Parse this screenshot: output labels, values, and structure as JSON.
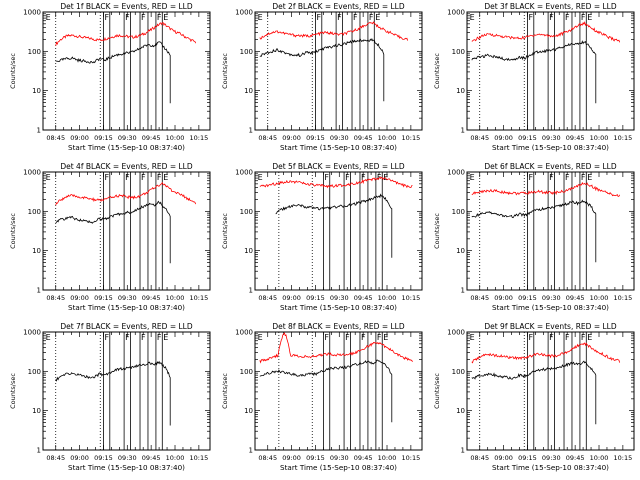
{
  "figure": {
    "ylabel": "Counts/sec",
    "xlabel": "Start Time (15-Sep-10 08:37:40)",
    "ytick_labels": [
      "1",
      "10",
      "100",
      "1000"
    ],
    "xtick_labels": [
      "08:45",
      "09:00",
      "09:15",
      "09:30",
      "09:45",
      "10:00",
      "10:15"
    ],
    "event_marker_labels": {
      "E": "E",
      "F": "F"
    },
    "colors": {
      "events": "#000000",
      "lld": "#ff0000",
      "frame": "#000000",
      "background": "#ffffff"
    }
  },
  "chart_data": [
    {
      "type": "line",
      "title": "Det 1f BLACK = Events, RED = LLD",
      "x_axis_minutes_range": [
        0,
        105
      ],
      "yscale": "log",
      "ylim": [
        1,
        1000
      ],
      "dotted_verticals": [
        "08:45",
        "09:13"
      ],
      "solid_verticals": [
        "09:15",
        "09:19",
        "09:28",
        "09:32",
        "09:38",
        "09:43",
        "09:48",
        "09:52"
      ],
      "marker_labels": [
        {
          "text": "E",
          "at": "08:38"
        },
        {
          "text": "F",
          "at": "09:15"
        },
        {
          "text": "F",
          "at": "09:28"
        },
        {
          "text": "F",
          "at": "09:38"
        },
        {
          "text": "F",
          "at": "09:48"
        },
        {
          "text": "E",
          "at": "09:52"
        }
      ],
      "series": [
        {
          "color": "red",
          "start": "08:45",
          "end": "10:13",
          "values": [
            150,
            205,
            245,
            255,
            240,
            225,
            215,
            200,
            195,
            210,
            230,
            255,
            250,
            235,
            230,
            250,
            290,
            350,
            440,
            530,
            420,
            330,
            290,
            240,
            200,
            170
          ]
        },
        {
          "color": "black",
          "start": "08:45",
          "end": "09:57",
          "values": [
            55,
            60,
            65,
            68,
            60,
            57,
            55,
            52,
            65,
            60,
            70,
            80,
            85,
            90,
            95,
            110,
            130,
            150,
            140,
            170,
            120,
            80
          ]
        }
      ]
    },
    {
      "type": "line",
      "title": "Det 2f BLACK = Events, RED = LLD",
      "x_axis_minutes_range": [
        0,
        105
      ],
      "yscale": "log",
      "ylim": [
        1,
        1000
      ],
      "dotted_verticals": [
        "08:45",
        "09:13"
      ],
      "solid_verticals": [
        "09:15",
        "09:19",
        "09:28",
        "09:32",
        "09:38",
        "09:43",
        "09:48",
        "09:52"
      ],
      "marker_labels": [
        {
          "text": "E",
          "at": "08:38"
        },
        {
          "text": "F",
          "at": "09:15"
        },
        {
          "text": "F",
          "at": "09:28"
        },
        {
          "text": "F",
          "at": "09:38"
        },
        {
          "text": "F",
          "at": "09:48"
        },
        {
          "text": "E",
          "at": "09:52"
        }
      ],
      "series": [
        {
          "color": "red",
          "start": "08:40",
          "end": "10:13",
          "values": [
            210,
            260,
            300,
            320,
            290,
            270,
            255,
            250,
            245,
            255,
            280,
            300,
            290,
            270,
            270,
            300,
            340,
            400,
            480,
            540,
            430,
            350,
            300,
            250,
            220,
            200
          ]
        },
        {
          "color": "black",
          "start": "08:40",
          "end": "09:58",
          "values": [
            75,
            90,
            100,
            110,
            95,
            85,
            80,
            80,
            95,
            90,
            105,
            120,
            130,
            140,
            150,
            165,
            180,
            195,
            185,
            200,
            150,
            90
          ]
        }
      ]
    },
    {
      "type": "line",
      "title": "Det 3f BLACK = Events, RED = LLD",
      "x_axis_minutes_range": [
        0,
        105
      ],
      "yscale": "log",
      "ylim": [
        1,
        1000
      ],
      "dotted_verticals": [
        "08:45",
        "09:13"
      ],
      "solid_verticals": [
        "09:15",
        "09:19",
        "09:28",
        "09:32",
        "09:38",
        "09:43",
        "09:48",
        "09:52"
      ],
      "marker_labels": [
        {
          "text": "E",
          "at": "08:38"
        },
        {
          "text": "F",
          "at": "09:15"
        },
        {
          "text": "F",
          "at": "09:28"
        },
        {
          "text": "F",
          "at": "09:38"
        },
        {
          "text": "F",
          "at": "09:48"
        },
        {
          "text": "E",
          "at": "09:52"
        }
      ],
      "series": [
        {
          "color": "red",
          "start": "08:40",
          "end": "10:13",
          "values": [
            170,
            215,
            255,
            270,
            255,
            240,
            230,
            220,
            215,
            225,
            250,
            270,
            265,
            250,
            245,
            270,
            310,
            370,
            460,
            520,
            420,
            330,
            280,
            230,
            200,
            180
          ]
        },
        {
          "color": "black",
          "start": "08:40",
          "end": "09:58",
          "values": [
            60,
            70,
            75,
            80,
            72,
            66,
            62,
            60,
            72,
            68,
            80,
            95,
            100,
            105,
            110,
            125,
            140,
            160,
            150,
            175,
            130,
            80
          ]
        }
      ]
    },
    {
      "type": "line",
      "title": "Det 4f BLACK = Events, RED = LLD",
      "x_axis_minutes_range": [
        0,
        105
      ],
      "yscale": "log",
      "ylim": [
        1,
        1000
      ],
      "dotted_verticals": [
        "08:45",
        "09:13"
      ],
      "solid_verticals": [
        "09:15",
        "09:19",
        "09:28",
        "09:32",
        "09:38",
        "09:43",
        "09:48",
        "09:52"
      ],
      "marker_labels": [
        {
          "text": "E",
          "at": "08:38"
        },
        {
          "text": "F",
          "at": "09:15"
        },
        {
          "text": "F",
          "at": "09:28"
        },
        {
          "text": "F",
          "at": "09:38"
        },
        {
          "text": "F",
          "at": "09:48"
        },
        {
          "text": "E",
          "at": "09:52"
        }
      ],
      "series": [
        {
          "color": "red",
          "start": "08:45",
          "end": "10:13",
          "values": [
            150,
            200,
            240,
            250,
            235,
            220,
            210,
            195,
            190,
            205,
            225,
            250,
            245,
            230,
            225,
            245,
            285,
            345,
            430,
            520,
            410,
            320,
            280,
            235,
            195,
            165
          ]
        },
        {
          "color": "black",
          "start": "08:45",
          "end": "09:57",
          "values": [
            55,
            62,
            66,
            70,
            62,
            58,
            55,
            53,
            66,
            62,
            72,
            82,
            88,
            92,
            98,
            112,
            132,
            152,
            142,
            172,
            120,
            80
          ]
        }
      ]
    },
    {
      "type": "line",
      "title": "Det 5f BLACK = Events, RED = LLD",
      "x_axis_minutes_range": [
        0,
        105
      ],
      "yscale": "log",
      "ylim": [
        1,
        1000
      ],
      "dotted_verticals": [
        "08:52",
        "09:13"
      ],
      "solid_verticals": [
        "09:20",
        "09:24",
        "09:33",
        "09:37",
        "09:43",
        "09:48",
        "09:53",
        "09:57"
      ],
      "marker_labels": [
        {
          "text": "E",
          "at": "08:38"
        },
        {
          "text": "F",
          "at": "09:20"
        },
        {
          "text": "F",
          "at": "09:33"
        },
        {
          "text": "F",
          "at": "09:43"
        },
        {
          "text": "F",
          "at": "09:53"
        },
        {
          "text": "E",
          "at": "09:57"
        }
      ],
      "series": [
        {
          "color": "red",
          "start": "08:40",
          "end": "10:16",
          "values": [
            420,
            450,
            480,
            520,
            560,
            580,
            560,
            520,
            480,
            460,
            450,
            440,
            440,
            450,
            470,
            500,
            540,
            580,
            620,
            660,
            700,
            650,
            560,
            480,
            440,
            420
          ]
        },
        {
          "color": "black",
          "start": "08:50",
          "end": "10:03",
          "values": [
            90,
            110,
            125,
            135,
            140,
            135,
            125,
            120,
            115,
            120,
            125,
            130,
            135,
            140,
            150,
            165,
            180,
            200,
            230,
            250,
            200,
            110
          ]
        }
      ]
    },
    {
      "type": "line",
      "title": "Det 6f BLACK = Events, RED = LLD",
      "x_axis_minutes_range": [
        0,
        105
      ],
      "yscale": "log",
      "ylim": [
        1,
        1000
      ],
      "dotted_verticals": [
        "08:45",
        "09:13"
      ],
      "solid_verticals": [
        "09:15",
        "09:19",
        "09:28",
        "09:32",
        "09:38",
        "09:43",
        "09:48",
        "09:52"
      ],
      "marker_labels": [
        {
          "text": "E",
          "at": "08:38"
        },
        {
          "text": "F",
          "at": "09:15"
        },
        {
          "text": "F",
          "at": "09:28"
        },
        {
          "text": "F",
          "at": "09:38"
        },
        {
          "text": "F",
          "at": "09:48"
        },
        {
          "text": "E",
          "at": "09:52"
        }
      ],
      "series": [
        {
          "color": "red",
          "start": "08:40",
          "end": "10:13",
          "values": [
            280,
            300,
            320,
            340,
            330,
            310,
            300,
            290,
            285,
            290,
            300,
            320,
            310,
            300,
            295,
            310,
            340,
            380,
            450,
            520,
            460,
            380,
            330,
            290,
            260,
            250
          ]
        },
        {
          "color": "black",
          "start": "08:40",
          "end": "09:58",
          "values": [
            70,
            80,
            90,
            95,
            85,
            80,
            75,
            72,
            85,
            80,
            95,
            110,
            115,
            120,
            125,
            140,
            155,
            170,
            160,
            185,
            140,
            85
          ]
        }
      ]
    },
    {
      "type": "line",
      "title": "Det 7f BLACK = Events, RED = LLD",
      "x_axis_minutes_range": [
        0,
        105
      ],
      "yscale": "log",
      "ylim": [
        1,
        1000
      ],
      "dotted_verticals": [
        "08:45",
        "09:13"
      ],
      "solid_verticals": [
        "09:15",
        "09:19",
        "09:28",
        "09:32",
        "09:38",
        "09:43",
        "09:48",
        "09:52"
      ],
      "marker_labels": [
        {
          "text": "E",
          "at": "08:38"
        },
        {
          "text": "F",
          "at": "09:15"
        },
        {
          "text": "F",
          "at": "09:28"
        },
        {
          "text": "F",
          "at": "09:38"
        },
        {
          "text": "F",
          "at": "09:48"
        },
        {
          "text": "E",
          "at": "09:52"
        }
      ],
      "series": [
        {
          "color": "black",
          "start": "08:45",
          "end": "09:57",
          "values": [
            60,
            75,
            85,
            90,
            82,
            76,
            72,
            70,
            85,
            80,
            95,
            110,
            115,
            120,
            125,
            135,
            150,
            160,
            150,
            170,
            130,
            70
          ]
        }
      ]
    },
    {
      "type": "line",
      "title": "Det 8f BLACK = Events, RED = LLD",
      "x_axis_minutes_range": [
        0,
        105
      ],
      "yscale": "log",
      "ylim": [
        1,
        1000
      ],
      "dotted_verticals": [
        "08:52",
        "09:13"
      ],
      "solid_verticals": [
        "09:20",
        "09:24",
        "09:33",
        "09:37",
        "09:43",
        "09:48",
        "09:53",
        "09:57"
      ],
      "marker_labels": [
        {
          "text": "E",
          "at": "08:38"
        },
        {
          "text": "F",
          "at": "09:20"
        },
        {
          "text": "F",
          "at": "09:33"
        },
        {
          "text": "F",
          "at": "09:43"
        },
        {
          "text": "F",
          "at": "09:53"
        },
        {
          "text": "E",
          "at": "09:57"
        }
      ],
      "series": [
        {
          "color": "red",
          "start": "08:40",
          "end": "10:16",
          "values": [
            180,
            200,
            230,
            250,
            1000,
            260,
            250,
            240,
            230,
            240,
            260,
            280,
            270,
            260,
            260,
            280,
            320,
            380,
            460,
            540,
            480,
            380,
            310,
            250,
            210,
            190
          ]
        },
        {
          "color": "black",
          "start": "08:40",
          "end": "10:03",
          "values": [
            70,
            85,
            95,
            100,
            92,
            85,
            80,
            78,
            90,
            85,
            100,
            115,
            120,
            125,
            130,
            145,
            160,
            175,
            165,
            190,
            140,
            85
          ]
        }
      ]
    },
    {
      "type": "line",
      "title": "Det 9f BLACK = Events, RED = LLD",
      "x_axis_minutes_range": [
        0,
        105
      ],
      "yscale": "log",
      "ylim": [
        1,
        1000
      ],
      "dotted_verticals": [
        "08:45",
        "09:13"
      ],
      "solid_verticals": [
        "09:15",
        "09:19",
        "09:28",
        "09:32",
        "09:38",
        "09:43",
        "09:48",
        "09:52"
      ],
      "marker_labels": [
        {
          "text": "E",
          "at": "08:38"
        },
        {
          "text": "F",
          "at": "09:15"
        },
        {
          "text": "F",
          "at": "09:28"
        },
        {
          "text": "F",
          "at": "09:38"
        },
        {
          "text": "F",
          "at": "09:48"
        },
        {
          "text": "E",
          "at": "09:52"
        }
      ],
      "series": [
        {
          "color": "red",
          "start": "08:40",
          "end": "10:13",
          "values": [
            170,
            215,
            255,
            270,
            255,
            240,
            230,
            220,
            215,
            225,
            250,
            270,
            265,
            250,
            245,
            270,
            310,
            370,
            460,
            520,
            420,
            330,
            280,
            230,
            200,
            180
          ]
        },
        {
          "color": "black",
          "start": "08:40",
          "end": "09:58",
          "values": [
            65,
            75,
            82,
            88,
            80,
            74,
            70,
            68,
            80,
            75,
            90,
            105,
            110,
            115,
            120,
            130,
            145,
            160,
            150,
            170,
            130,
            75
          ]
        }
      ]
    }
  ]
}
